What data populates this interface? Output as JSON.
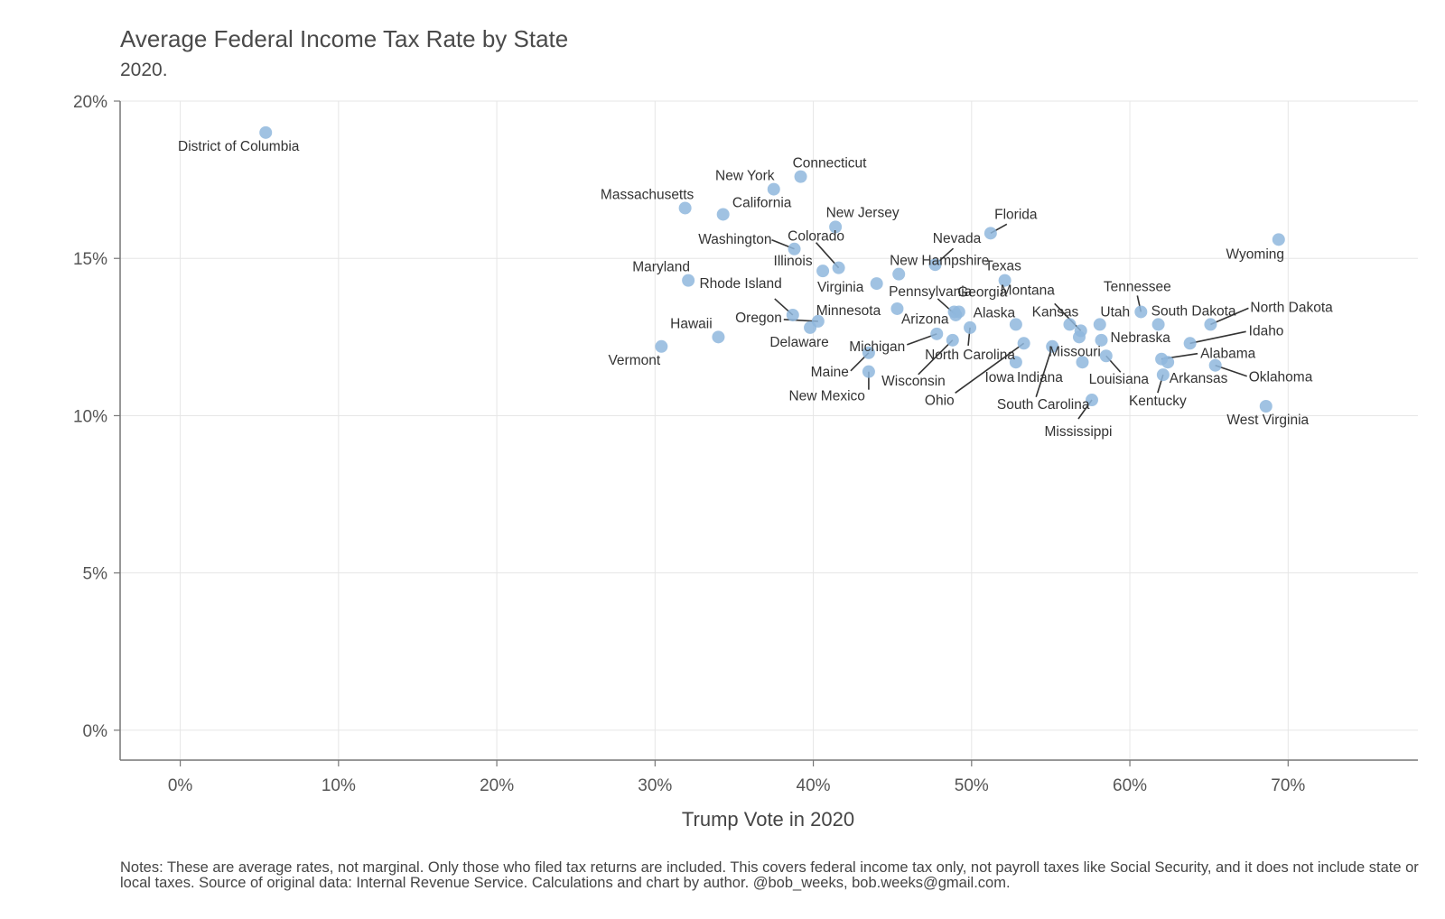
{
  "chart_data": {
    "type": "scatter",
    "title": "Average Federal Income Tax Rate by State",
    "subtitle": "2020.",
    "xlabel": "Trump Vote in 2020",
    "ylabel": "",
    "xlim": [
      -0.038,
      0.782
    ],
    "ylim": [
      -0.0095,
      0.2
    ],
    "x_ticks": [
      {
        "value": 0.0,
        "label": "0%"
      },
      {
        "value": 0.1,
        "label": "10%"
      },
      {
        "value": 0.2,
        "label": "20%"
      },
      {
        "value": 0.3,
        "label": "30%"
      },
      {
        "value": 0.4,
        "label": "40%"
      },
      {
        "value": 0.5,
        "label": "50%"
      },
      {
        "value": 0.6,
        "label": "60%"
      },
      {
        "value": 0.7,
        "label": "70%"
      }
    ],
    "y_ticks": [
      {
        "value": 0.0,
        "label": "0%"
      },
      {
        "value": 0.05,
        "label": "5%"
      },
      {
        "value": 0.1,
        "label": "10%"
      },
      {
        "value": 0.15,
        "label": "15%"
      },
      {
        "value": 0.2,
        "label": "20%"
      }
    ],
    "grid": true,
    "point_color": "#8fb7dd",
    "points": [
      {
        "label": "District of Columbia",
        "x": 0.054,
        "y": 0.19
      },
      {
        "label": "Vermont",
        "x": 0.304,
        "y": 0.122
      },
      {
        "label": "Massachusetts",
        "x": 0.319,
        "y": 0.166
      },
      {
        "label": "Maryland",
        "x": 0.321,
        "y": 0.143
      },
      {
        "label": "Hawaii",
        "x": 0.34,
        "y": 0.125
      },
      {
        "label": "California",
        "x": 0.343,
        "y": 0.164
      },
      {
        "label": "New York",
        "x": 0.375,
        "y": 0.172
      },
      {
        "label": "Rhode Island",
        "x": 0.387,
        "y": 0.132
      },
      {
        "label": "Washington",
        "x": 0.388,
        "y": 0.153
      },
      {
        "label": "Connecticut",
        "x": 0.392,
        "y": 0.176
      },
      {
        "label": "Delaware",
        "x": 0.398,
        "y": 0.128
      },
      {
        "label": "Oregon",
        "x": 0.403,
        "y": 0.13
      },
      {
        "label": "Illinois",
        "x": 0.406,
        "y": 0.146
      },
      {
        "label": "New Jersey",
        "x": 0.414,
        "y": 0.16
      },
      {
        "label": "Colorado",
        "x": 0.416,
        "y": 0.147
      },
      {
        "label": "Maine",
        "x": 0.435,
        "y": 0.12
      },
      {
        "label": "New Mexico",
        "x": 0.435,
        "y": 0.114
      },
      {
        "label": "Virginia",
        "x": 0.44,
        "y": 0.142
      },
      {
        "label": "Minnesota",
        "x": 0.453,
        "y": 0.134
      },
      {
        "label": "New Hampshire",
        "x": 0.454,
        "y": 0.145
      },
      {
        "label": "Nevada",
        "x": 0.477,
        "y": 0.148
      },
      {
        "label": "Michigan",
        "x": 0.478,
        "y": 0.126
      },
      {
        "label": "Arizona",
        "x": 0.489,
        "y": 0.133
      },
      {
        "label": "Wisconsin",
        "x": 0.488,
        "y": 0.124
      },
      {
        "label": "Pennsylvania",
        "x": 0.49,
        "y": 0.132
      },
      {
        "label": "Georgia",
        "x": 0.492,
        "y": 0.133
      },
      {
        "label": "North Carolina",
        "x": 0.499,
        "y": 0.128
      },
      {
        "label": "Florida",
        "x": 0.512,
        "y": 0.158
      },
      {
        "label": "Texas",
        "x": 0.521,
        "y": 0.143
      },
      {
        "label": "Ohio",
        "x": 0.533,
        "y": 0.123
      },
      {
        "label": "Iowa",
        "x": 0.528,
        "y": 0.117
      },
      {
        "label": "Alaska",
        "x": 0.528,
        "y": 0.129
      },
      {
        "label": "South Carolina",
        "x": 0.551,
        "y": 0.122
      },
      {
        "label": "Kansas",
        "x": 0.562,
        "y": 0.129
      },
      {
        "label": "Missouri",
        "x": 0.568,
        "y": 0.125
      },
      {
        "label": "Montana",
        "x": 0.569,
        "y": 0.127
      },
      {
        "label": "Indiana",
        "x": 0.57,
        "y": 0.117
      },
      {
        "label": "Mississippi",
        "x": 0.576,
        "y": 0.105
      },
      {
        "label": "Utah",
        "x": 0.581,
        "y": 0.129
      },
      {
        "label": "Nebraska",
        "x": 0.582,
        "y": 0.124
      },
      {
        "label": "Louisiana",
        "x": 0.585,
        "y": 0.119
      },
      {
        "label": "Tennessee",
        "x": 0.607,
        "y": 0.133
      },
      {
        "label": "South Dakota",
        "x": 0.618,
        "y": 0.129
      },
      {
        "label": "Kentucky",
        "x": 0.621,
        "y": 0.113
      },
      {
        "label": "Alabama",
        "x": 0.62,
        "y": 0.118
      },
      {
        "label": "Arkansas",
        "x": 0.624,
        "y": 0.117
      },
      {
        "label": "Idaho",
        "x": 0.638,
        "y": 0.123
      },
      {
        "label": "North Dakota",
        "x": 0.651,
        "y": 0.129
      },
      {
        "label": "Oklahoma",
        "x": 0.654,
        "y": 0.116
      },
      {
        "label": "West Virginia",
        "x": 0.686,
        "y": 0.103
      },
      {
        "label": "Wyoming",
        "x": 0.694,
        "y": 0.156
      }
    ]
  },
  "notes": "Notes: These are average rates, not marginal. Only those who filed tax returns are included. This covers federal income tax only, not payroll taxes like Social Security, and it does not include state or local taxes. Source of original data: Internal Revenue Service. Calculations and chart by author. @bob_weeks, bob.weeks@gmail.com."
}
